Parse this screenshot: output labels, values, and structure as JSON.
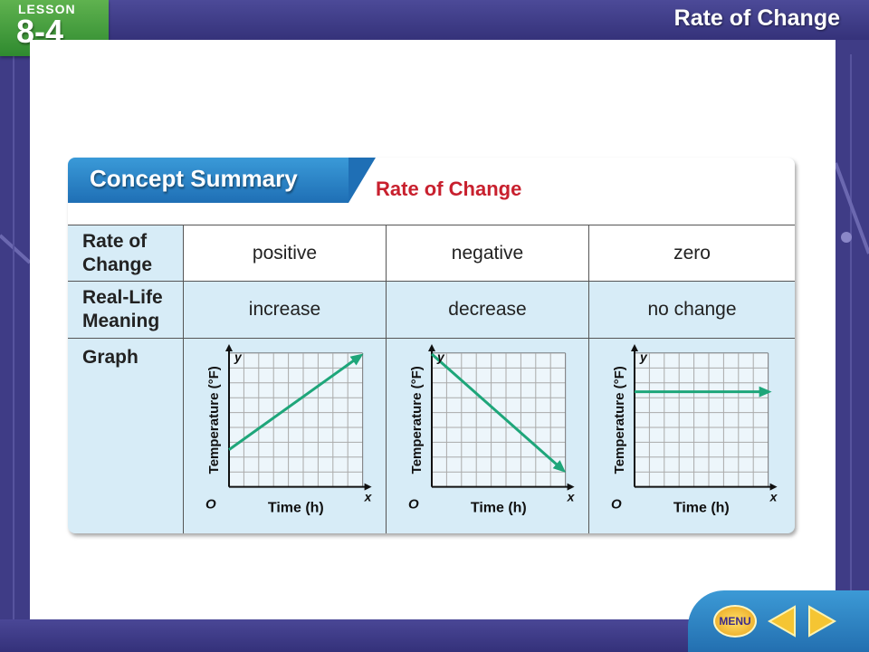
{
  "header": {
    "lesson_label": "LESSON",
    "lesson_number": "8-4",
    "title": "Rate of Change"
  },
  "card": {
    "title": "Concept Summary",
    "subtitle": "Rate of Change"
  },
  "table": {
    "rows": [
      {
        "label_line1": "Rate of",
        "label_line2": "Change",
        "cells": [
          "positive",
          "negative",
          "zero"
        ]
      },
      {
        "label_line1": "Real-Life",
        "label_line2": "Meaning",
        "cells": [
          "increase",
          "decrease",
          "no change"
        ]
      },
      {
        "label_line1": "Graph",
        "label_line2": ""
      }
    ]
  },
  "graphs": [
    {
      "trend": "increase",
      "y_label": "Temperature (°F)",
      "x_label": "Time (h)",
      "origin": "O",
      "x_axis": "x",
      "y_axis": "y"
    },
    {
      "trend": "decrease",
      "y_label": "Temperature (°F)",
      "x_label": "Time (h)",
      "origin": "O",
      "x_axis": "x",
      "y_axis": "y"
    },
    {
      "trend": "constant",
      "y_label": "Temperature (°F)",
      "x_label": "Time (h)",
      "origin": "O",
      "x_axis": "x",
      "y_axis": "y"
    }
  ],
  "nav": {
    "menu_label": "MENU",
    "prev_icon": "left-arrow-icon",
    "next_icon": "right-arrow-icon"
  },
  "colors": {
    "line": "#1ea67a",
    "subtitle": "#c8202e",
    "card_bg": "#d7ecf7",
    "tab": "#2a84c6"
  }
}
